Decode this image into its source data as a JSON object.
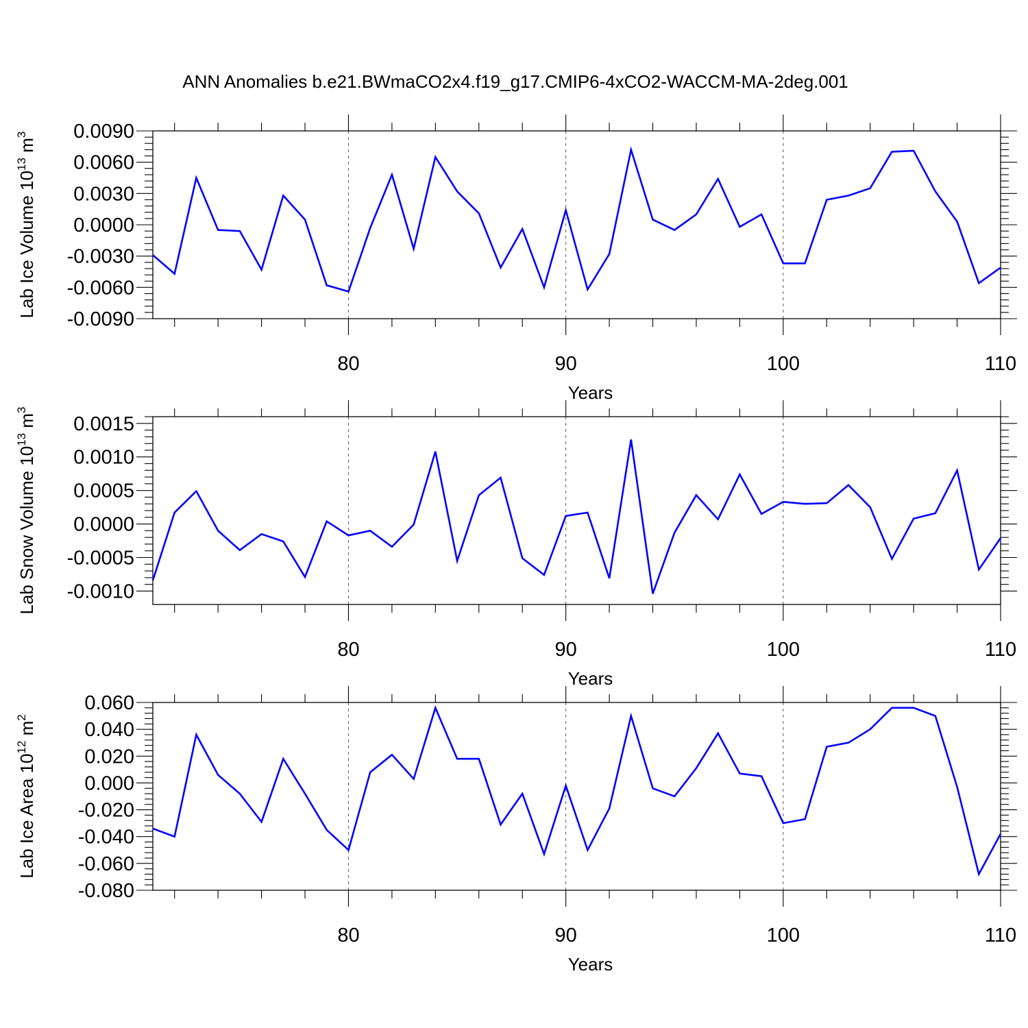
{
  "figure": {
    "title": "ANN Anomalies b.e21.BWmaCO2x4.f19_g17.CMIP6-4xCO2-WACCM-MA-2deg.001"
  },
  "colors": {
    "series": "#0000ff",
    "axes": "#000000",
    "grid": "#555555"
  },
  "chart_data": [
    {
      "type": "line",
      "title": "",
      "xlabel": "Years",
      "ylabel": {
        "text": "Lab Ice Volume 10",
        "exp": "13",
        "unit": " m",
        "unit_exp": "3"
      },
      "xlim": [
        71,
        110
      ],
      "ylim": [
        -0.009,
        0.009
      ],
      "x_ticks": [
        80,
        90,
        100,
        110
      ],
      "x_tick_labels": [
        "80",
        "90",
        "100",
        "110"
      ],
      "y_ticks": [
        -0.009,
        -0.006,
        -0.003,
        0.0,
        0.003,
        0.006,
        0.009
      ],
      "y_tick_labels": [
        "-0.0090",
        "-0.0060",
        "-0.0030",
        "0.0000",
        "0.0030",
        "0.0060",
        "0.0090"
      ],
      "grid": "dashed vertical at x ticks",
      "series": [
        {
          "x": [
            71,
            72,
            73,
            74,
            75,
            76,
            77,
            78,
            79,
            80,
            81,
            82,
            83,
            84,
            85,
            86,
            87,
            88,
            89,
            90,
            91,
            92,
            93,
            94,
            95,
            96,
            97,
            98,
            99,
            100,
            101,
            102,
            103,
            104,
            105,
            106,
            107,
            108,
            109,
            110
          ],
          "values": [
            -0.0029,
            -0.0047,
            0.0045,
            -0.0005,
            -0.0006,
            -0.0043,
            0.0028,
            0.0005,
            -0.0058,
            -0.0064,
            -0.0003,
            0.0048,
            -0.0023,
            0.0065,
            0.0032,
            0.0011,
            -0.0041,
            -0.0004,
            -0.006,
            0.0014,
            -0.0062,
            -0.0028,
            0.0072,
            0.0005,
            -0.0005,
            0.001,
            0.0044,
            -0.0002,
            0.001,
            -0.0037,
            -0.0037,
            0.0024,
            0.0028,
            0.0035,
            0.007,
            0.0071,
            0.0032,
            0.0003,
            -0.0056,
            -0.0041
          ]
        }
      ]
    },
    {
      "type": "line",
      "title": "",
      "xlabel": "Years",
      "ylabel": {
        "text": "Lab Snow Volume 10",
        "exp": "13",
        "unit": " m",
        "unit_exp": "3"
      },
      "xlim": [
        71,
        110
      ],
      "ylim": [
        -0.0012,
        0.0016
      ],
      "x_ticks": [
        80,
        90,
        100,
        110
      ],
      "x_tick_labels": [
        "80",
        "90",
        "100",
        "110"
      ],
      "y_ticks": [
        -0.001,
        -0.0005,
        0.0,
        0.0005,
        0.001,
        0.0015
      ],
      "y_tick_labels": [
        "-0.0010",
        "-0.0005",
        "0.0000",
        "0.0005",
        "0.0010",
        "0.0015"
      ],
      "grid": "dashed vertical at x ticks",
      "series": [
        {
          "x": [
            71,
            72,
            73,
            74,
            75,
            76,
            77,
            78,
            79,
            80,
            81,
            82,
            83,
            84,
            85,
            86,
            87,
            88,
            89,
            90,
            91,
            92,
            93,
            94,
            95,
            96,
            97,
            98,
            99,
            100,
            101,
            102,
            103,
            104,
            105,
            106,
            107,
            108,
            109,
            110
          ],
          "values": [
            -0.00084,
            0.00017,
            0.00049,
            -0.0001,
            -0.00039,
            -0.00015,
            -0.00026,
            -0.00079,
            4e-05,
            -0.00017,
            -0.0001,
            -0.00034,
            -1e-05,
            0.00108,
            -0.00055,
            0.00043,
            0.00069,
            -0.00051,
            -0.00076,
            0.00012,
            0.00017,
            -0.00081,
            0.00126,
            -0.00104,
            -0.00013,
            0.00043,
            7e-05,
            0.00074,
            0.00015,
            0.00033,
            0.0003,
            0.00031,
            0.00058,
            0.00025,
            -0.00052,
            8e-05,
            0.00016,
            0.0008,
            -0.00068,
            -0.00021
          ]
        }
      ]
    },
    {
      "type": "line",
      "title": "",
      "xlabel": "Years",
      "ylabel": {
        "text": "Lab Ice Area 10",
        "exp": "12",
        "unit": " m",
        "unit_exp": "2"
      },
      "xlim": [
        71,
        110
      ],
      "ylim": [
        -0.08,
        0.06
      ],
      "x_ticks": [
        80,
        90,
        100,
        110
      ],
      "x_tick_labels": [
        "80",
        "90",
        "100",
        "110"
      ],
      "y_ticks": [
        -0.08,
        -0.06,
        -0.04,
        -0.02,
        0.0,
        0.02,
        0.04,
        0.06
      ],
      "y_tick_labels": [
        "-0.080",
        "-0.060",
        "-0.040",
        "-0.020",
        "0.000",
        "0.020",
        "0.040",
        "0.060"
      ],
      "grid": "dashed vertical at x ticks",
      "series": [
        {
          "x": [
            71,
            72,
            73,
            74,
            75,
            76,
            77,
            78,
            79,
            80,
            81,
            82,
            83,
            84,
            85,
            86,
            87,
            88,
            89,
            90,
            91,
            92,
            93,
            94,
            95,
            96,
            97,
            98,
            99,
            100,
            101,
            102,
            103,
            104,
            105,
            106,
            107,
            108,
            109,
            110
          ],
          "values": [
            -0.034,
            -0.04,
            0.036,
            0.006,
            -0.008,
            -0.029,
            0.018,
            -0.008,
            -0.035,
            -0.05,
            0.008,
            0.021,
            0.003,
            0.056,
            0.018,
            0.018,
            -0.031,
            -0.008,
            -0.053,
            -0.002,
            -0.05,
            -0.019,
            0.05,
            -0.004,
            -0.01,
            0.011,
            0.037,
            0.007,
            0.005,
            -0.03,
            -0.027,
            0.027,
            0.03,
            0.04,
            0.056,
            0.056,
            0.05,
            -0.003,
            -0.068,
            -0.038
          ]
        }
      ]
    }
  ]
}
